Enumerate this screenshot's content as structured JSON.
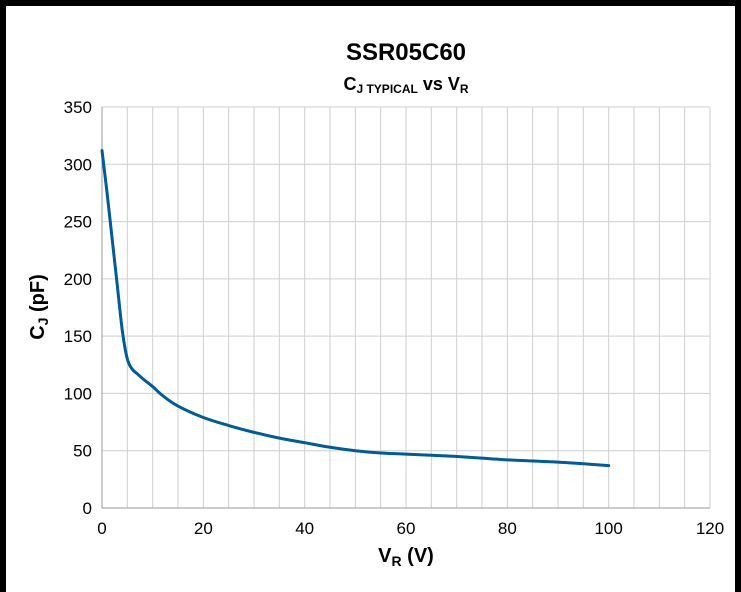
{
  "chart_data": {
    "type": "line",
    "title": "SSR05C60",
    "subtitle": {
      "main": "C",
      "main_sub": "J TYPICAL",
      "mid": " vs ",
      "var": "V",
      "var_sub": "R"
    },
    "xlabel": {
      "main": "V",
      "sub": "R",
      "rest": " (V)"
    },
    "ylabel": {
      "main": "C",
      "sub": "J",
      "rest": " (pF)"
    },
    "xlim": [
      0,
      120
    ],
    "ylim": [
      0,
      350
    ],
    "x_ticks": [
      0,
      20,
      40,
      60,
      80,
      100,
      120
    ],
    "y_ticks": [
      0,
      50,
      100,
      150,
      200,
      250,
      300,
      350
    ],
    "x_minor_step": 5,
    "grid": true,
    "line_color": "#005b96",
    "series": [
      {
        "x": [
          0,
          1,
          2,
          3,
          4,
          5,
          6,
          7,
          8,
          10,
          12,
          15,
          20,
          25,
          30,
          35,
          40,
          45,
          50,
          55,
          60,
          70,
          80,
          90,
          100
        ],
        "y": [
          312,
          275,
          235,
          195,
          155,
          130,
          121,
          117,
          113,
          106,
          98,
          89,
          79,
          72,
          66,
          61,
          57,
          53,
          50,
          48,
          47,
          45,
          42,
          40,
          37
        ]
      }
    ]
  }
}
